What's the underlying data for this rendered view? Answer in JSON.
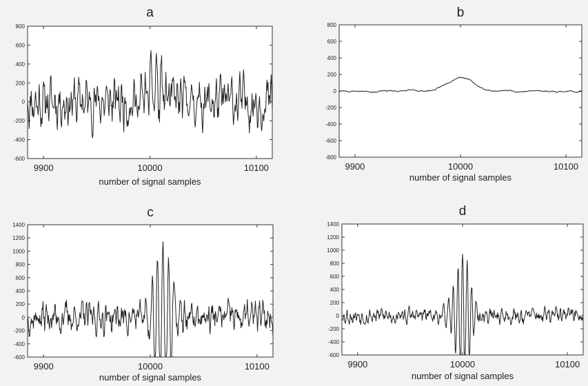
{
  "chart_data": [
    {
      "id": "a",
      "type": "line",
      "title": "a",
      "xlabel": "number of signal samples",
      "ylabel": "",
      "xlim": [
        9885,
        10115
      ],
      "ylim": [
        -600,
        800
      ],
      "xticks": [
        9900,
        10000,
        10100
      ],
      "yticks": [
        -600,
        -400,
        -200,
        0,
        200,
        400,
        600,
        800
      ],
      "signal": {
        "kind": "noise",
        "seed": 11,
        "noise_amp": 230,
        "burst_center": 10006,
        "burst_width": 10,
        "burst_amp": 300,
        "burst_offset": 150
      },
      "series": [
        {
          "values_desc": "broadband noise roughly ±400 with peak ~660 near x=10010"
        }
      ]
    },
    {
      "id": "b",
      "type": "line",
      "title": "b",
      "xlabel": "number of signal samples",
      "ylabel": "",
      "xlim": [
        9885,
        10115
      ],
      "ylim": [
        -800,
        800
      ],
      "xticks": [
        9900,
        10000,
        10100
      ],
      "yticks": [
        -800,
        -600,
        -400,
        -200,
        0,
        200,
        400,
        600,
        800
      ],
      "signal": {
        "kind": "smooth",
        "seed": 23,
        "noise_amp": 25,
        "burst_center": 10000,
        "burst_width": 16,
        "burst_amp": 180
      },
      "series": [
        {
          "values_desc": "slow baseline near 0 with a smooth hump peaking ~180 at x=10000"
        }
      ]
    },
    {
      "id": "c",
      "type": "line",
      "title": "c",
      "xlabel": "number of signal samples",
      "ylabel": "",
      "xlim": [
        9885,
        10115
      ],
      "ylim": [
        -600,
        1400
      ],
      "xticks": [
        9900,
        10000,
        10100
      ],
      "yticks": [
        -600,
        -400,
        -200,
        0,
        200,
        400,
        600,
        800,
        1000,
        1200,
        1400
      ],
      "signal": {
        "kind": "noise_osc",
        "seed": 37,
        "noise_amp": 220,
        "burst_center": 10012,
        "burst_width": 12,
        "burst_amp": 1150,
        "burst_period": 5.2
      },
      "series": [
        {
          "values_desc": "noise ±400 with oscillatory burst peaking ~1230 near x=10010"
        }
      ]
    },
    {
      "id": "d",
      "type": "line",
      "title": "d",
      "xlabel": "number of signal samples",
      "ylabel": "",
      "xlim": [
        9885,
        10115
      ],
      "ylim": [
        -600,
        1400
      ],
      "xticks": [
        9900,
        10000,
        10100
      ],
      "yticks": [
        -600,
        -400,
        -200,
        0,
        200,
        400,
        600,
        800,
        1000,
        1200,
        1400
      ],
      "signal": {
        "kind": "noise_osc",
        "seed": 53,
        "noise_amp": 110,
        "burst_center": 10000,
        "burst_width": 10,
        "burst_amp": 950,
        "burst_period": 4.4
      },
      "series": [
        {
          "values_desc": "lower noise ±150 with oscillatory burst peaking ~1020 at x=10000"
        }
      ]
    }
  ]
}
